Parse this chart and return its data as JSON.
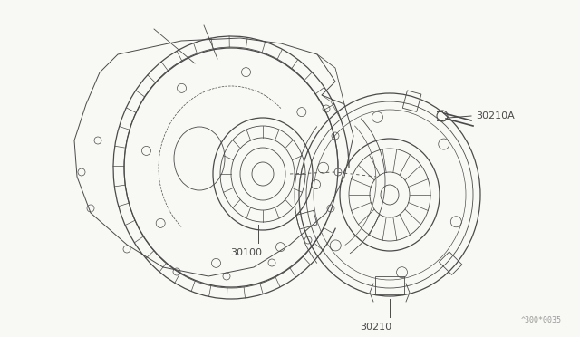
{
  "bg_color": "#f8f8f4",
  "line_color": "#4a4a4a",
  "line_color_light": "#7a7a7a",
  "diagram_code": "^300*0035",
  "label_30100": "30100",
  "label_30210": "30210",
  "label_30210A": "30210A"
}
